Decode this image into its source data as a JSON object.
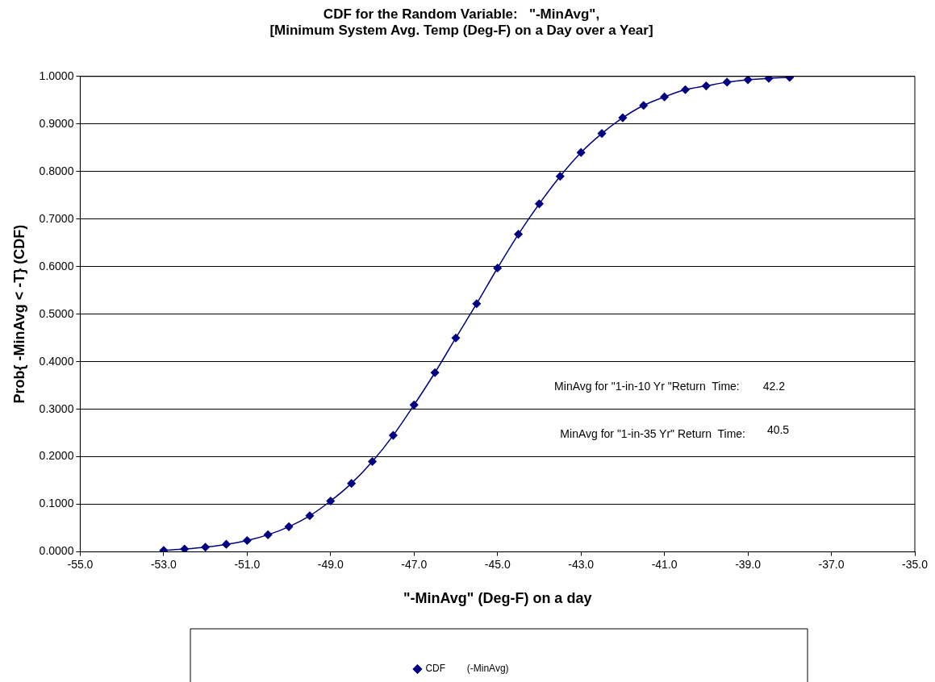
{
  "chart_data": {
    "type": "line",
    "title": "CDF for the Random Variable:   \"-MinAvg\",\n[Minimum System Avg. Temp (Deg-F) on a Day over a Year]",
    "xlabel": "\"-MinAvg\" (Deg-F) on a day",
    "ylabel": "Prob{ -MinAvg < -T} (CDF)",
    "x": [
      -53,
      -52.5,
      -52,
      -51.5,
      -51,
      -50.5,
      -50,
      -49.5,
      -49,
      -48.5,
      -48,
      -47.5,
      -47,
      -46.5,
      -46,
      -45.5,
      -45,
      -44.5,
      -44,
      -43.5,
      -43,
      -42.5,
      -42,
      -41.5,
      -41,
      -40.5,
      -40,
      -39.5,
      -39,
      -38.5,
      -38
    ],
    "series": [
      {
        "name": "CDF        (-MinAvg)",
        "color": "#000080",
        "values": [
          0.003,
          0.006,
          0.01,
          0.016,
          0.024,
          0.036,
          0.053,
          0.076,
          0.107,
          0.144,
          0.19,
          0.245,
          0.309,
          0.377,
          0.45,
          0.522,
          0.597,
          0.668,
          0.732,
          0.79,
          0.84,
          0.88,
          0.913,
          0.939,
          0.957,
          0.972,
          0.98,
          0.988,
          0.993,
          0.996,
          0.998
        ]
      }
    ],
    "xlim": [
      -55,
      -35
    ],
    "xticks": [
      {
        "value": -55,
        "label": "-55.0"
      },
      {
        "value": -53,
        "label": "-53.0"
      },
      {
        "value": -51,
        "label": "-51.0"
      },
      {
        "value": -49,
        "label": "-49.0"
      },
      {
        "value": -47,
        "label": "-47.0"
      },
      {
        "value": -45,
        "label": "-45.0"
      },
      {
        "value": -43,
        "label": "-43.0"
      },
      {
        "value": -41,
        "label": "-41.0"
      },
      {
        "value": -39,
        "label": "-39.0"
      },
      {
        "value": -37,
        "label": "-37.0"
      },
      {
        "value": -35,
        "label": "-35.0"
      }
    ],
    "ylim": [
      0,
      1
    ],
    "yticks": [
      {
        "value": 0,
        "label": "0.0000"
      },
      {
        "value": 0.1,
        "label": "0.1000"
      },
      {
        "value": 0.2,
        "label": "0.2000"
      },
      {
        "value": 0.3,
        "label": "0.3000"
      },
      {
        "value": 0.4,
        "label": "0.4000"
      },
      {
        "value": 0.5,
        "label": "0.5000"
      },
      {
        "value": 0.6,
        "label": "0.6000"
      },
      {
        "value": 0.7,
        "label": "0.7000"
      },
      {
        "value": 0.8,
        "label": "0.8000"
      },
      {
        "value": 0.9,
        "label": "0.9000"
      },
      {
        "value": 1,
        "label": "1.0000"
      }
    ],
    "annotations": [
      "MinAvg for \"1-in-10 Yr \"Return  Time:",
      "42.2",
      "MinAvg for \"1-in-35 Yr\" Return  Time:",
      "40.5"
    ],
    "grid": "y",
    "legend": "bottom",
    "marker": "diamond",
    "line_style": "solid"
  }
}
